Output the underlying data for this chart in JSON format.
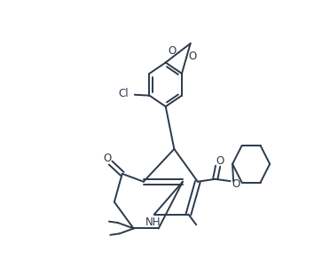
{
  "bg": "#ffffff",
  "lc": "#2b3a4a",
  "lw": 1.4,
  "fs": 8.5,
  "xlim": [
    0.0,
    1.0
  ],
  "ylim": [
    0.0,
    1.0
  ]
}
